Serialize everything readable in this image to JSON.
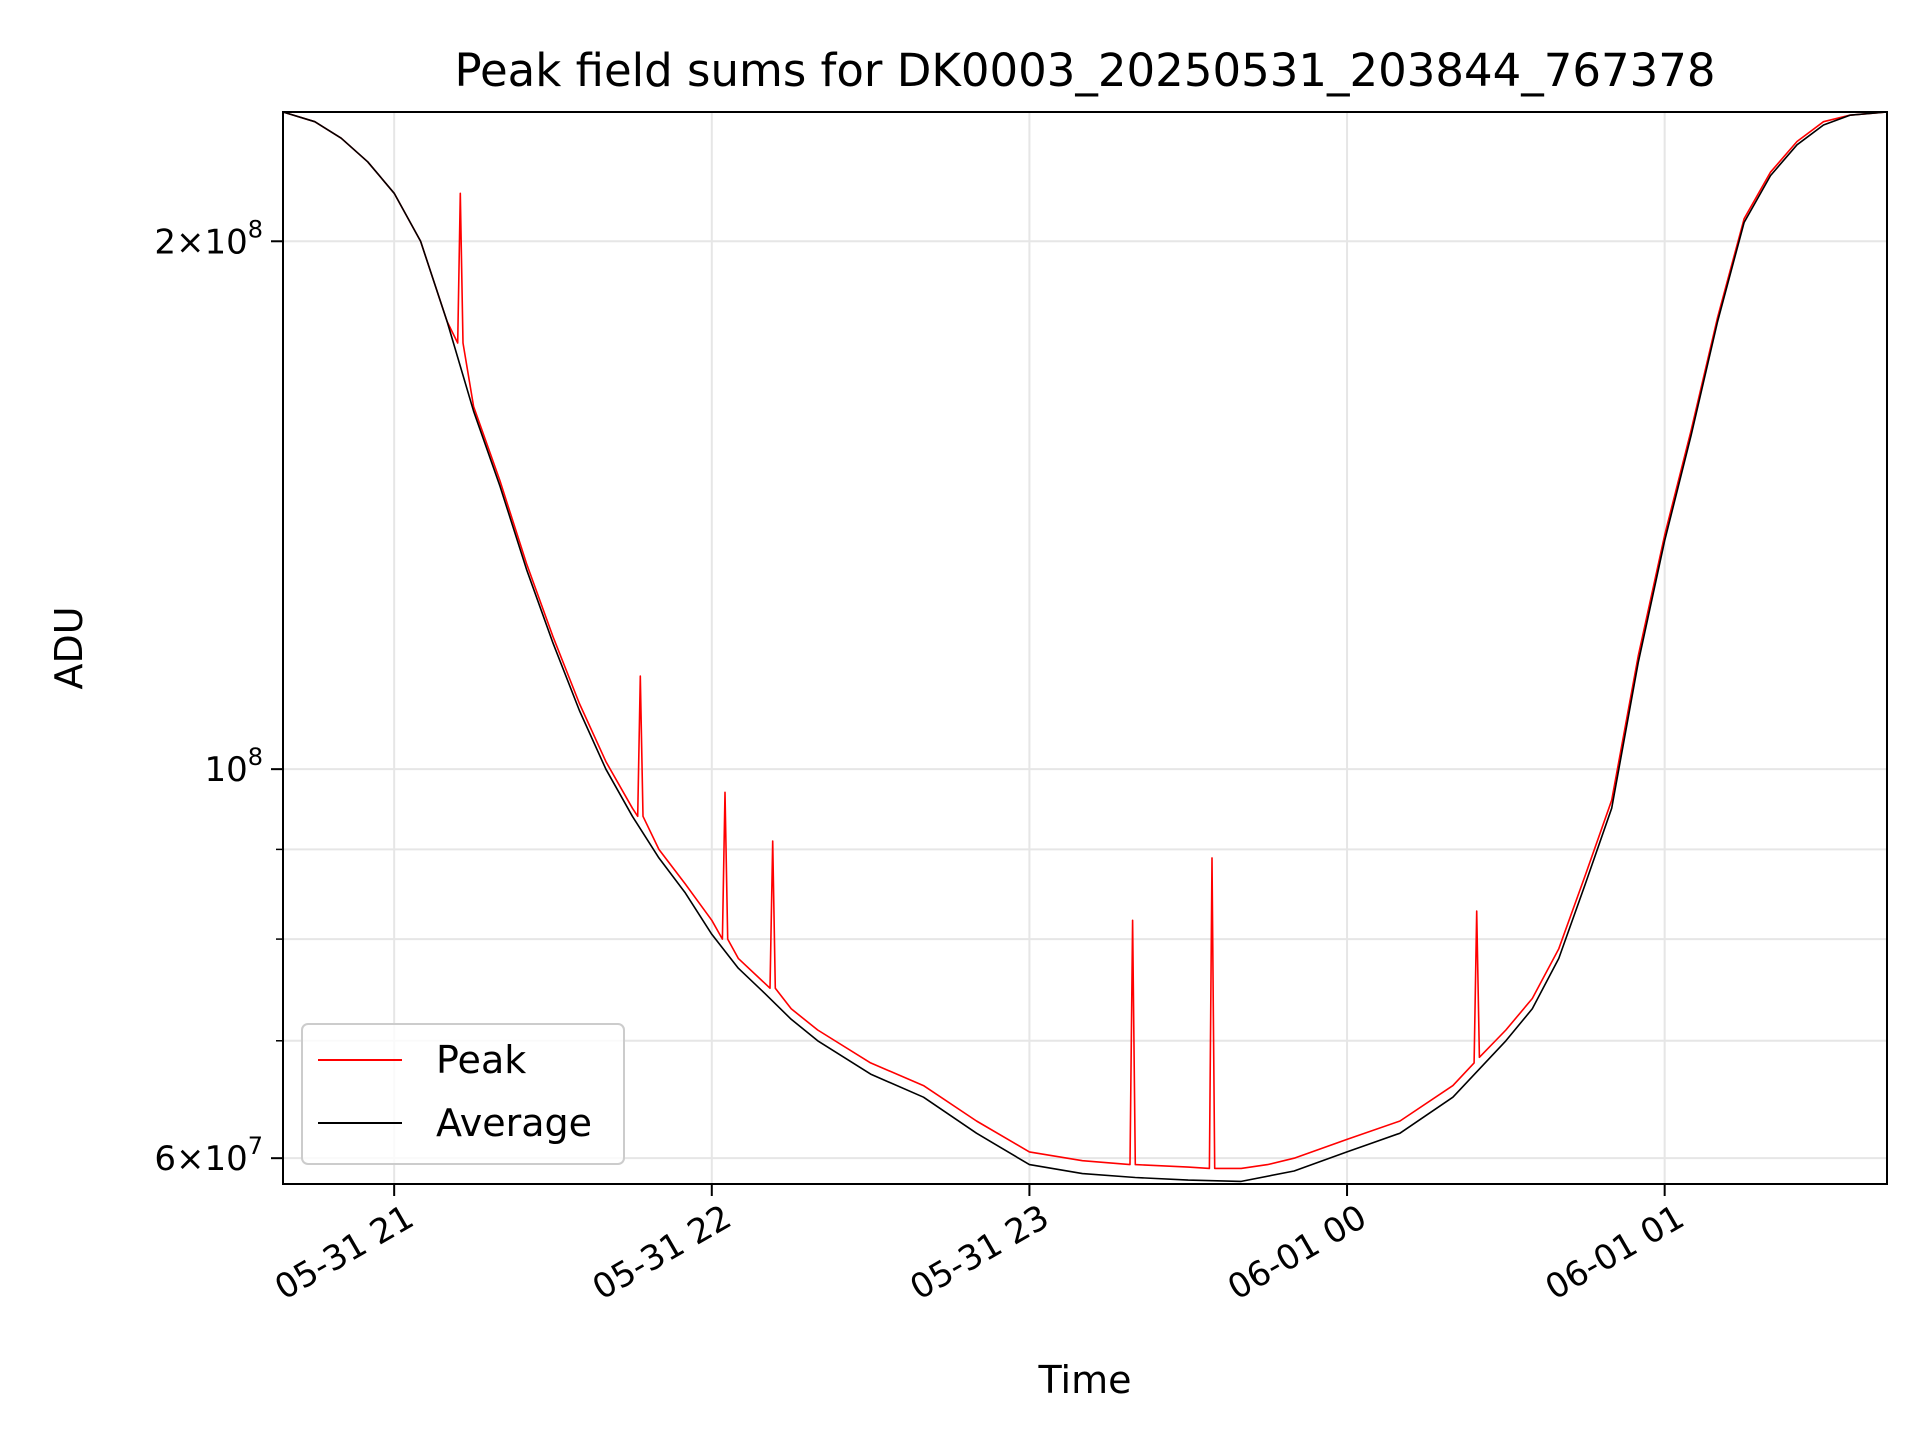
{
  "chart_data": {
    "type": "line",
    "title": "Peak field sums for DK0003_20250531_203844_767378",
    "xlabel": "Time",
    "ylabel": "ADU",
    "x_range": [
      "2025-05-31T20:39:00",
      "2025-06-01T01:42:00"
    ],
    "y_scale": "log",
    "ylim": [
      58000000,
      237000000
    ],
    "grid": true,
    "legend_position": "lower-left",
    "x_ticks": [
      {
        "value": "2025-05-31T21:00:00",
        "label": "05-31 21"
      },
      {
        "value": "2025-05-31T22:00:00",
        "label": "05-31 22"
      },
      {
        "value": "2025-05-31T23:00:00",
        "label": "05-31 23"
      },
      {
        "value": "2025-06-01T00:00:00",
        "label": "06-01 00"
      },
      {
        "value": "2025-06-01T01:00:00",
        "label": "06-01 01"
      }
    ],
    "y_ticks": [
      {
        "value": 60000000,
        "mantissa": "6",
        "exponent": "7"
      },
      {
        "value": 100000000,
        "mantissa": "",
        "exponent": "8"
      },
      {
        "value": 200000000,
        "mantissa": "2",
        "exponent": "8"
      }
    ],
    "y_minor_ticks": [
      70000000,
      80000000,
      90000000
    ],
    "series": [
      {
        "name": "Average",
        "color": "#000000",
        "x": [
          "2025-05-31T20:39:00",
          "2025-05-31T20:45:00",
          "2025-05-31T20:50:00",
          "2025-05-31T20:55:00",
          "2025-05-31T21:00:00",
          "2025-05-31T21:05:00",
          "2025-05-31T21:10:00",
          "2025-05-31T21:15:00",
          "2025-05-31T21:20:00",
          "2025-05-31T21:25:00",
          "2025-05-31T21:30:00",
          "2025-05-31T21:35:00",
          "2025-05-31T21:40:00",
          "2025-05-31T21:45:00",
          "2025-05-31T21:50:00",
          "2025-05-31T21:55:00",
          "2025-05-31T22:00:00",
          "2025-05-31T22:05:00",
          "2025-05-31T22:10:00",
          "2025-05-31T22:15:00",
          "2025-05-31T22:20:00",
          "2025-05-31T22:30:00",
          "2025-05-31T22:40:00",
          "2025-05-31T22:50:00",
          "2025-05-31T23:00:00",
          "2025-05-31T23:10:00",
          "2025-05-31T23:20:00",
          "2025-05-31T23:30:00",
          "2025-05-31T23:40:00",
          "2025-05-31T23:50:00",
          "2025-06-01T00:00:00",
          "2025-06-01T00:10:00",
          "2025-06-01T00:20:00",
          "2025-06-01T00:30:00",
          "2025-06-01T00:35:00",
          "2025-06-01T00:40:00",
          "2025-06-01T00:45:00",
          "2025-06-01T00:50:00",
          "2025-06-01T00:55:00",
          "2025-06-01T01:00:00",
          "2025-06-01T01:05:00",
          "2025-06-01T01:10:00",
          "2025-06-01T01:15:00",
          "2025-06-01T01:20:00",
          "2025-06-01T01:25:00",
          "2025-06-01T01:30:00",
          "2025-06-01T01:35:00",
          "2025-06-01T01:42:00"
        ],
        "y": [
          237000000,
          234000000,
          229000000,
          222000000,
          213000000,
          200000000,
          180000000,
          160000000,
          145000000,
          130000000,
          118000000,
          108000000,
          100000000,
          94000000,
          89000000,
          85000000,
          80500000,
          77000000,
          74500000,
          72000000,
          70000000,
          67000000,
          65000000,
          62000000,
          59500000,
          58800000,
          58500000,
          58300000,
          58200000,
          59000000,
          60500000,
          62000000,
          65000000,
          70000000,
          73000000,
          78000000,
          86000000,
          95000000,
          115000000,
          135000000,
          155000000,
          180000000,
          205000000,
          218000000,
          227000000,
          233000000,
          236000000,
          237000000
        ]
      },
      {
        "name": "Peak",
        "color": "#ff0000",
        "x": [
          "2025-05-31T20:39:00",
          "2025-05-31T20:45:00",
          "2025-05-31T20:50:00",
          "2025-05-31T20:55:00",
          "2025-05-31T21:00:00",
          "2025-05-31T21:05:00",
          "2025-05-31T21:10:00",
          "2025-05-31T21:12:00",
          "2025-05-31T21:12:30",
          "2025-05-31T21:13:00",
          "2025-05-31T21:15:00",
          "2025-05-31T21:20:00",
          "2025-05-31T21:25:00",
          "2025-05-31T21:30:00",
          "2025-05-31T21:35:00",
          "2025-05-31T21:40:00",
          "2025-05-31T21:45:00",
          "2025-05-31T21:46:00",
          "2025-05-31T21:46:30",
          "2025-05-31T21:47:00",
          "2025-05-31T21:50:00",
          "2025-05-31T21:55:00",
          "2025-05-31T22:00:00",
          "2025-05-31T22:02:00",
          "2025-05-31T22:02:30",
          "2025-05-31T22:03:00",
          "2025-05-31T22:05:00",
          "2025-05-31T22:10:00",
          "2025-05-31T22:11:00",
          "2025-05-31T22:11:30",
          "2025-05-31T22:12:00",
          "2025-05-31T22:15:00",
          "2025-05-31T22:20:00",
          "2025-05-31T22:30:00",
          "2025-05-31T22:40:00",
          "2025-05-31T22:50:00",
          "2025-05-31T23:00:00",
          "2025-05-31T23:10:00",
          "2025-05-31T23:19:00",
          "2025-05-31T23:19:30",
          "2025-05-31T23:20:00",
          "2025-05-31T23:30:00",
          "2025-05-31T23:34:00",
          "2025-05-31T23:34:30",
          "2025-05-31T23:35:00",
          "2025-05-31T23:40:00",
          "2025-05-31T23:45:00",
          "2025-05-31T23:50:00",
          "2025-06-01T00:00:00",
          "2025-06-01T00:10:00",
          "2025-06-01T00:20:00",
          "2025-06-01T00:24:00",
          "2025-06-01T00:24:30",
          "2025-06-01T00:25:00",
          "2025-06-01T00:30:00",
          "2025-06-01T00:35:00",
          "2025-06-01T00:40:00",
          "2025-06-01T00:45:00",
          "2025-06-01T00:50:00",
          "2025-06-01T00:55:00",
          "2025-06-01T01:00:00",
          "2025-06-01T01:05:00",
          "2025-06-01T01:10:00",
          "2025-06-01T01:15:00",
          "2025-06-01T01:20:00",
          "2025-06-01T01:25:00",
          "2025-06-01T01:30:00",
          "2025-06-01T01:35:00",
          "2025-06-01T01:42:00"
        ],
        "y": [
          237000000,
          234000000,
          229000000,
          222000000,
          213000000,
          200000000,
          180000000,
          175000000,
          213000000,
          175000000,
          161000000,
          146000000,
          131000000,
          119000000,
          109000000,
          101000000,
          95000000,
          94000000,
          113000000,
          94000000,
          90000000,
          86000000,
          82000000,
          80000000,
          97000000,
          80000000,
          78000000,
          75500000,
          75000000,
          91000000,
          75000000,
          73000000,
          71000000,
          68000000,
          66000000,
          63000000,
          60500000,
          59800000,
          59500000,
          82000000,
          59500000,
          59300000,
          59200000,
          89000000,
          59200000,
          59200000,
          59500000,
          60000000,
          61500000,
          63000000,
          66000000,
          68000000,
          83000000,
          68500000,
          71000000,
          74000000,
          79000000,
          87000000,
          96000000,
          116000000,
          136000000,
          156000000,
          181000000,
          206000000,
          219000000,
          228000000,
          234000000,
          236000000,
          237000000
        ]
      }
    ]
  }
}
